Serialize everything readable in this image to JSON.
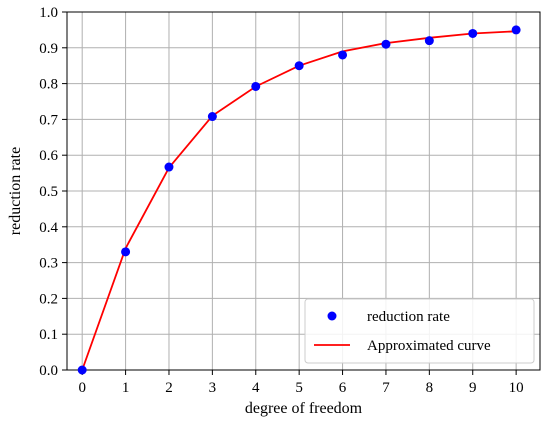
{
  "chart_data": {
    "type": "scatter",
    "title": "",
    "xlabel": "degree of freedom",
    "ylabel": "reduction rate",
    "xlim": [
      -0.35,
      10.55
    ],
    "ylim": [
      0.0,
      1.0
    ],
    "x_ticks": [
      0,
      1,
      2,
      3,
      4,
      5,
      6,
      7,
      8,
      9,
      10
    ],
    "y_ticks": [
      0.0,
      0.1,
      0.2,
      0.3,
      0.4,
      0.5,
      0.6,
      0.7,
      0.8,
      0.9,
      1.0
    ],
    "x_tick_labels": [
      "0",
      "1",
      "2",
      "3",
      "4",
      "5",
      "6",
      "7",
      "8",
      "9",
      "10"
    ],
    "y_tick_labels": [
      "0.0",
      "0.1",
      "0.2",
      "0.3",
      "0.4",
      "0.5",
      "0.6",
      "0.7",
      "0.8",
      "0.9",
      "1.0"
    ],
    "grid": true,
    "legend_position": "lower-right",
    "series": [
      {
        "name": "reduction rate",
        "kind": "scatter",
        "color": "#0000ff",
        "x": [
          0,
          1,
          2,
          3,
          4,
          5,
          6,
          7,
          8,
          9,
          10
        ],
        "y": [
          0.0,
          0.33,
          0.567,
          0.708,
          0.792,
          0.85,
          0.88,
          0.91,
          0.92,
          0.94,
          0.95
        ]
      },
      {
        "name": "Approximated curve",
        "kind": "line",
        "color": "#ff0000",
        "x": [
          0,
          1,
          2,
          3,
          4,
          5,
          6,
          7,
          8,
          9,
          10
        ],
        "y": [
          0.0,
          0.34,
          0.565,
          0.71,
          0.792,
          0.85,
          0.89,
          0.913,
          0.928,
          0.94,
          0.946
        ]
      }
    ]
  }
}
